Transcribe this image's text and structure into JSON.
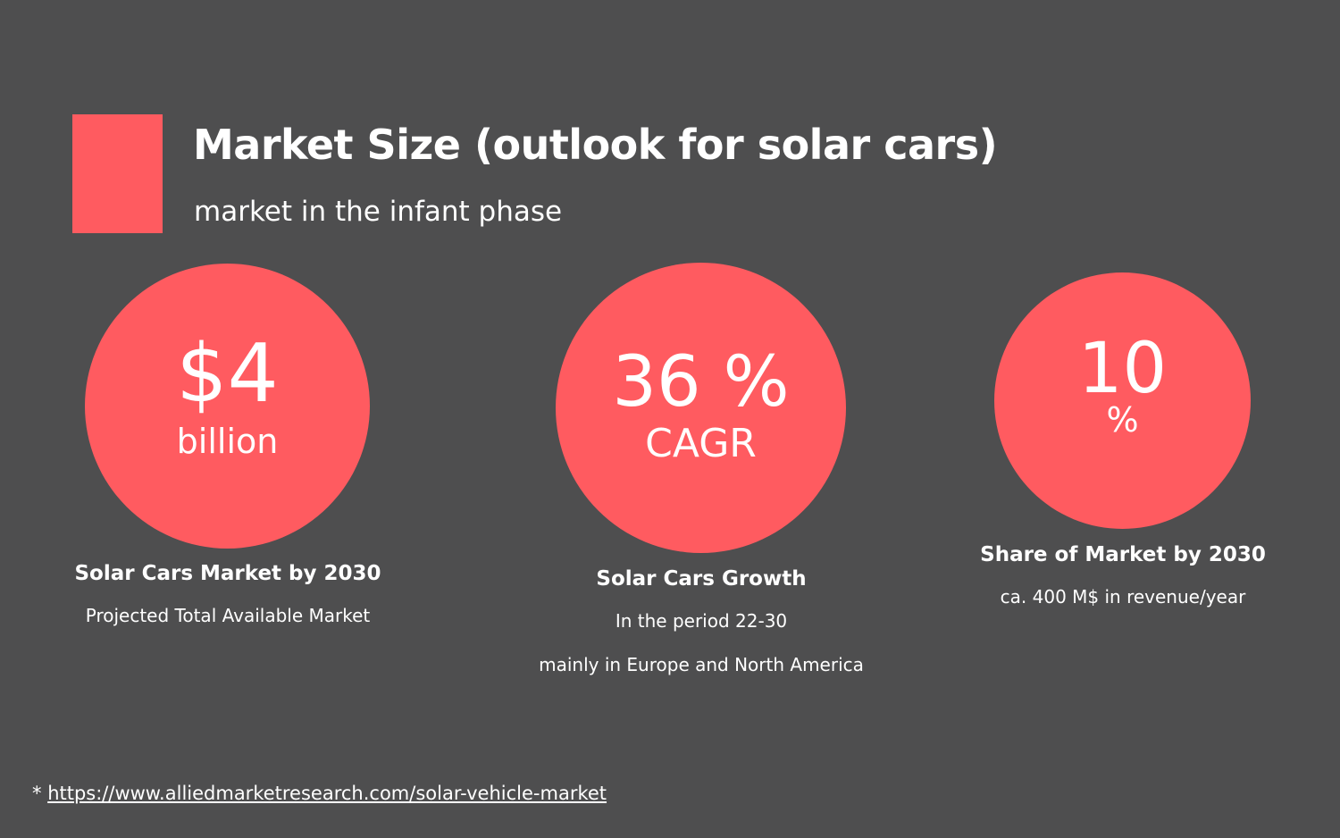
{
  "header": {
    "title": "Market Size (outlook for solar cars)",
    "subtitle": "market in the infant phase"
  },
  "colors": {
    "background": "#4e4e4f",
    "accent": "#ff5b60",
    "text": "#ffffff"
  },
  "stats": [
    {
      "value": "$4",
      "unit": "billion",
      "heading": "Solar Cars Market by 2030",
      "lines": [
        "Projected Total Available Market"
      ]
    },
    {
      "value": "36 %",
      "unit": "CAGR",
      "heading": "Solar Cars Growth",
      "lines": [
        "In the period 22-30",
        "mainly in Europe and North America"
      ]
    },
    {
      "value": "10",
      "unit": "%",
      "heading": "Share of Market by 2030",
      "lines": [
        "ca. 400 M$ in revenue/year"
      ]
    }
  ],
  "footnote": {
    "marker": "*",
    "link_text": "https://www.alliedmarketresearch.com/solar-vehicle-market"
  }
}
